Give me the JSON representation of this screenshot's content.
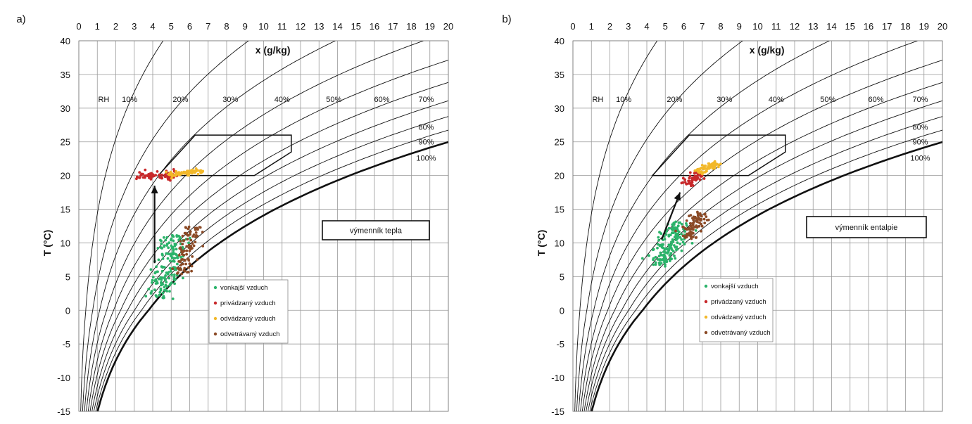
{
  "chart_data": [
    {
      "type": "scatter",
      "panel_label": "a)",
      "xlabel": "x (g/kg)",
      "ylabel": "T (°C)",
      "xlim": [
        0,
        20
      ],
      "ylim": [
        -15,
        40
      ],
      "x_ticks": [
        "0",
        "1",
        "2",
        "3",
        "4",
        "5",
        "6",
        "7",
        "8",
        "9",
        "10",
        "11",
        "12",
        "13",
        "14",
        "15",
        "16",
        "17",
        "18",
        "19",
        "20"
      ],
      "y_ticks": [
        "40",
        "35",
        "30",
        "25",
        "20",
        "15",
        "10",
        "5",
        "0",
        "-5",
        "-10",
        "-15"
      ],
      "rh_axis_label": "RH",
      "rh_top_labels": [
        "10%",
        "20%",
        "30%",
        "40%",
        "50%",
        "60%",
        "70%"
      ],
      "rh_right_labels": [
        "80%",
        "90%",
        "100%"
      ],
      "rh_curves_percent": [
        10,
        20,
        30,
        40,
        50,
        60,
        70,
        80,
        90,
        100
      ],
      "comfort_zone_polygon": [
        [
          4.3,
          20
        ],
        [
          9.5,
          20
        ],
        [
          11.5,
          23.5
        ],
        [
          11.5,
          26
        ],
        [
          6.3,
          26
        ]
      ],
      "arrow": {
        "from": [
          4.1,
          7.0
        ],
        "to": [
          4.1,
          18.5
        ]
      },
      "annotation_box": "výmenník tepla",
      "legend": [
        "vonkajší vzduch",
        "privádzaný vzduch",
        "odvádzaný vzduch",
        "odvetrávaný vzduch"
      ],
      "series": [
        {
          "name": "vonkajší vzduch",
          "color": "#2bb36a",
          "center": [
            4.8,
            6.5
          ],
          "slope_dT_dx": 3.6,
          "spread_x": 2.6,
          "spread_perp": 0.9,
          "n": 160
        },
        {
          "name": "privádzaný vzduch",
          "color": "#c8282a",
          "center": [
            4.2,
            20.0
          ],
          "slope_dT_dx": 0.0,
          "spread_x": 2.2,
          "spread_perp": 0.7,
          "n": 70
        },
        {
          "name": "odvádzaný vzduch",
          "color": "#f2b82a",
          "center": [
            5.8,
            20.4
          ],
          "slope_dT_dx": 0.3,
          "spread_x": 2.0,
          "spread_perp": 0.35,
          "n": 80
        },
        {
          "name": "odvetrávaný vzduch",
          "color": "#8b4a26",
          "center": [
            5.9,
            9.0
          ],
          "slope_dT_dx": 3.3,
          "spread_x": 2.2,
          "spread_perp": 0.6,
          "n": 90
        }
      ]
    },
    {
      "type": "scatter",
      "panel_label": "b)",
      "xlabel": "x (g/kg)",
      "ylabel": "T (°C)",
      "xlim": [
        0,
        20
      ],
      "ylim": [
        -15,
        40
      ],
      "x_ticks": [
        "0",
        "1",
        "2",
        "3",
        "4",
        "5",
        "6",
        "7",
        "8",
        "9",
        "10",
        "11",
        "12",
        "13",
        "14",
        "15",
        "16",
        "17",
        "18",
        "19",
        "20"
      ],
      "y_ticks": [
        "40",
        "35",
        "30",
        "25",
        "20",
        "15",
        "10",
        "5",
        "0",
        "-5",
        "-10",
        "-15"
      ],
      "rh_axis_label": "RH",
      "rh_top_labels": [
        "10%",
        "20%",
        "30%",
        "40%",
        "50%",
        "60%",
        "70%"
      ],
      "rh_right_labels": [
        "80%",
        "90%",
        "100%"
      ],
      "rh_curves_percent": [
        10,
        20,
        30,
        40,
        50,
        60,
        70,
        80,
        90,
        100
      ],
      "comfort_zone_polygon": [
        [
          4.3,
          20
        ],
        [
          9.5,
          20
        ],
        [
          11.5,
          23.5
        ],
        [
          11.5,
          26
        ],
        [
          6.3,
          26
        ]
      ],
      "arrow": {
        "from": [
          4.8,
          10.5
        ],
        "to": [
          5.8,
          17.5
        ]
      },
      "annotation_box": "výmenník entalpie",
      "legend": [
        "vonkajší vzduch",
        "privádzaný vzduch",
        "odvádzaný vzduch",
        "odvetrávaný vzduch"
      ],
      "series": [
        {
          "name": "vonkajší vzduch",
          "color": "#2bb36a",
          "center": [
            5.3,
            9.8
          ],
          "slope_dT_dx": 2.5,
          "spread_x": 2.6,
          "spread_perp": 0.9,
          "n": 160
        },
        {
          "name": "privádzaný vzduch",
          "color": "#c8282a",
          "center": [
            6.5,
            19.5
          ],
          "slope_dT_dx": 1.3,
          "spread_x": 1.3,
          "spread_perp": 0.5,
          "n": 60
        },
        {
          "name": "odvádzaný vzduch",
          "color": "#f2b82a",
          "center": [
            7.3,
            21.2
          ],
          "slope_dT_dx": 1.0,
          "spread_x": 1.5,
          "spread_perp": 0.4,
          "n": 80
        },
        {
          "name": "odvetrávaný vzduch",
          "color": "#8b4a26",
          "center": [
            6.6,
            12.6
          ],
          "slope_dT_dx": 2.0,
          "spread_x": 1.9,
          "spread_perp": 0.6,
          "n": 90
        }
      ]
    }
  ]
}
